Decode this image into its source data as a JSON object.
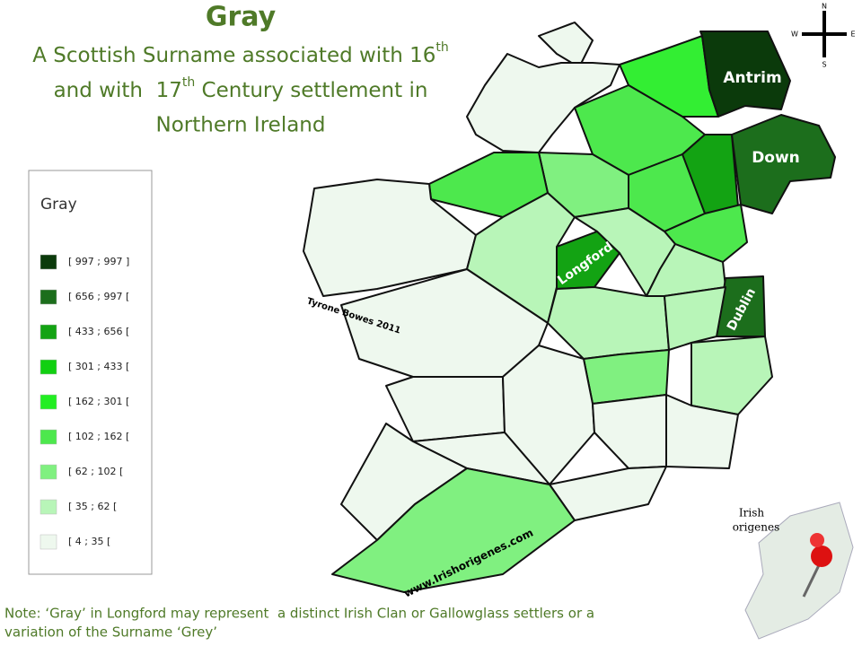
{
  "header": {
    "title": "Gray",
    "subtitle": {
      "line1": "A Scottish Surname associated with 16",
      "sup1": "th",
      "line2": "and with  17",
      "sup2": "th",
      "line2_end": " Century settlement in",
      "line3": "Northern Ireland"
    }
  },
  "legend": {
    "title": "Gray",
    "items": [
      {
        "label": "[ 997 ; 997 ]",
        "color": "#0b3a0b"
      },
      {
        "label": "[ 656 ; 997 [",
        "color": "#1c6e1c"
      },
      {
        "label": "[ 433 ; 656 [",
        "color": "#13a313"
      },
      {
        "label": "[ 301 ; 433 [",
        "color": "#11d011"
      },
      {
        "label": "[ 162 ; 301 [",
        "color": "#22ee22"
      },
      {
        "label": "[ 102 ; 162 [",
        "color": "#4de84d"
      },
      {
        "label": "[ 62 ; 102 [",
        "color": "#80f080"
      },
      {
        "label": "[ 35 ; 62 [",
        "color": "#b8f5b8"
      },
      {
        "label": "[ 4 ; 35 [",
        "color": "#eef8ee"
      }
    ]
  },
  "map": {
    "labels": {
      "antrim": "Antrim",
      "down": "Down",
      "longford": "Longford",
      "dublin": "Dublin"
    },
    "credit": "Tyrone Bowes 2011",
    "website": "www.Irishorigenes.com"
  },
  "compass": {
    "n": "N",
    "w": "W",
    "e": "E",
    "s": "S"
  },
  "logo": {
    "line1": "Irish",
    "line2": "origenes"
  },
  "note": {
    "line1": "Note: ‘Gray’ in Longford may represent  a distinct Irish Clan or Gallowglass settlers or a",
    "line2": "variation of the Surname ‘Grey’"
  }
}
